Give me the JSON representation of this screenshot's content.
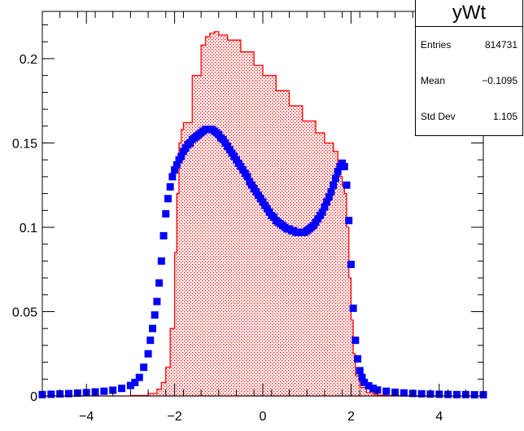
{
  "chart_data": {
    "type": "histogram",
    "xlim": [
      -5,
      5
    ],
    "ylim": [
      0,
      0.228
    ],
    "x_ticks": [
      -4,
      -2,
      0,
      2,
      4
    ],
    "x_tick_labels": [
      "−4",
      "−2",
      "0",
      "2",
      "4"
    ],
    "y_ticks": [
      0,
      0.05,
      0.1,
      0.15,
      0.2
    ],
    "y_tick_labels": [
      "0",
      "0.05",
      "0.1",
      "0.15",
      "0.2"
    ],
    "grid": false,
    "stats": {
      "title": "yWt",
      "rows": [
        {
          "label": "Entries",
          "value": "814731"
        },
        {
          "label": "Mean",
          "value": "−0.1095"
        },
        {
          "label": "Std Dev",
          "value": "1.105"
        }
      ]
    },
    "series": [
      {
        "type": "step-filled",
        "color": "#ff0000",
        "x": [
          -5,
          -4,
          -3.5,
          -3,
          -2.6,
          -2.4,
          -2.3,
          -2.2,
          -2.1,
          -2.0,
          -1.95,
          -1.9,
          -1.85,
          -1.8,
          -1.6,
          -1.4,
          -1.3,
          -1.2,
          -1.1,
          -1.0,
          -0.8,
          -0.5,
          -0.2,
          0.0,
          0.3,
          0.6,
          0.9,
          1.2,
          1.4,
          1.6,
          1.7,
          1.75,
          1.8,
          1.85,
          1.9,
          1.95,
          2.0,
          2.05,
          2.1,
          2.2,
          2.35,
          2.5,
          2.6,
          2.8,
          3.0,
          3.5,
          4.0,
          4.5,
          5.0
        ],
        "y": [
          0,
          0,
          0,
          0.0003,
          0.0015,
          0.004,
          0.008,
          0.017,
          0.04,
          0.085,
          0.12,
          0.15,
          0.158,
          0.162,
          0.19,
          0.208,
          0.213,
          0.215,
          0.216,
          0.214,
          0.211,
          0.204,
          0.196,
          0.19,
          0.181,
          0.172,
          0.163,
          0.156,
          0.15,
          0.145,
          0.138,
          0.13,
          0.125,
          0.12,
          0.1,
          0.07,
          0.045,
          0.025,
          0.012,
          0.005,
          0.002,
          0.001,
          0.0005,
          0.0002,
          0.0001,
          0,
          0,
          0,
          0
        ]
      },
      {
        "type": "markers",
        "color": "#0000ff",
        "x": [
          -5.0,
          -4.8,
          -4.6,
          -4.4,
          -4.2,
          -4.0,
          -3.8,
          -3.6,
          -3.4,
          -3.2,
          -3.0,
          -2.9,
          -2.8,
          -2.7,
          -2.6,
          -2.55,
          -2.5,
          -2.45,
          -2.4,
          -2.35,
          -2.3,
          -2.25,
          -2.2,
          -2.15,
          -2.1,
          -2.05,
          -2.0,
          -1.95,
          -1.9,
          -1.85,
          -1.8,
          -1.75,
          -1.7,
          -1.65,
          -1.6,
          -1.55,
          -1.5,
          -1.45,
          -1.4,
          -1.35,
          -1.3,
          -1.25,
          -1.2,
          -1.15,
          -1.1,
          -1.05,
          -1.0,
          -0.95,
          -0.9,
          -0.85,
          -0.8,
          -0.75,
          -0.7,
          -0.65,
          -0.6,
          -0.55,
          -0.5,
          -0.45,
          -0.4,
          -0.35,
          -0.3,
          -0.25,
          -0.2,
          -0.15,
          -0.1,
          -0.05,
          0.0,
          0.05,
          0.1,
          0.15,
          0.2,
          0.25,
          0.3,
          0.35,
          0.4,
          0.45,
          0.5,
          0.55,
          0.6,
          0.65,
          0.7,
          0.75,
          0.8,
          0.85,
          0.9,
          0.95,
          1.0,
          1.05,
          1.1,
          1.15,
          1.2,
          1.25,
          1.3,
          1.35,
          1.4,
          1.45,
          1.5,
          1.55,
          1.6,
          1.65,
          1.7,
          1.75,
          1.8,
          1.85,
          1.9,
          1.95,
          2.0,
          2.05,
          2.1,
          2.15,
          2.2,
          2.25,
          2.3,
          2.4,
          2.5,
          2.6,
          2.8,
          3.0,
          3.2,
          3.4,
          3.6,
          3.8,
          4.0,
          4.2,
          4.4,
          4.6,
          4.8,
          5.0
        ],
        "y": [
          0.0008,
          0.001,
          0.0012,
          0.0014,
          0.0017,
          0.002,
          0.0024,
          0.0028,
          0.0034,
          0.0045,
          0.0062,
          0.008,
          0.011,
          0.017,
          0.025,
          0.033,
          0.04,
          0.048,
          0.056,
          0.067,
          0.08,
          0.095,
          0.108,
          0.117,
          0.124,
          0.13,
          0.134,
          0.137,
          0.14,
          0.142,
          0.145,
          0.147,
          0.149,
          0.15,
          0.152,
          0.153,
          0.154,
          0.155,
          0.156,
          0.157,
          0.158,
          0.158,
          0.158,
          0.158,
          0.157,
          0.156,
          0.155,
          0.153,
          0.152,
          0.15,
          0.148,
          0.146,
          0.144,
          0.142,
          0.14,
          0.138,
          0.136,
          0.134,
          0.132,
          0.13,
          0.127,
          0.125,
          0.123,
          0.121,
          0.119,
          0.117,
          0.115,
          0.113,
          0.111,
          0.109,
          0.107,
          0.106,
          0.104,
          0.103,
          0.102,
          0.101,
          0.1,
          0.099,
          0.099,
          0.098,
          0.098,
          0.097,
          0.097,
          0.097,
          0.097,
          0.097,
          0.098,
          0.099,
          0.1,
          0.101,
          0.103,
          0.105,
          0.107,
          0.109,
          0.112,
          0.115,
          0.118,
          0.121,
          0.125,
          0.129,
          0.133,
          0.136,
          0.138,
          0.136,
          0.125,
          0.104,
          0.078,
          0.052,
          0.033,
          0.022,
          0.015,
          0.011,
          0.008,
          0.006,
          0.0045,
          0.0035,
          0.0028,
          0.0022,
          0.0018,
          0.0015,
          0.0013,
          0.0011,
          0.001,
          0.0009,
          0.0008,
          0.0008,
          0.0007,
          0.0007
        ]
      }
    ]
  }
}
